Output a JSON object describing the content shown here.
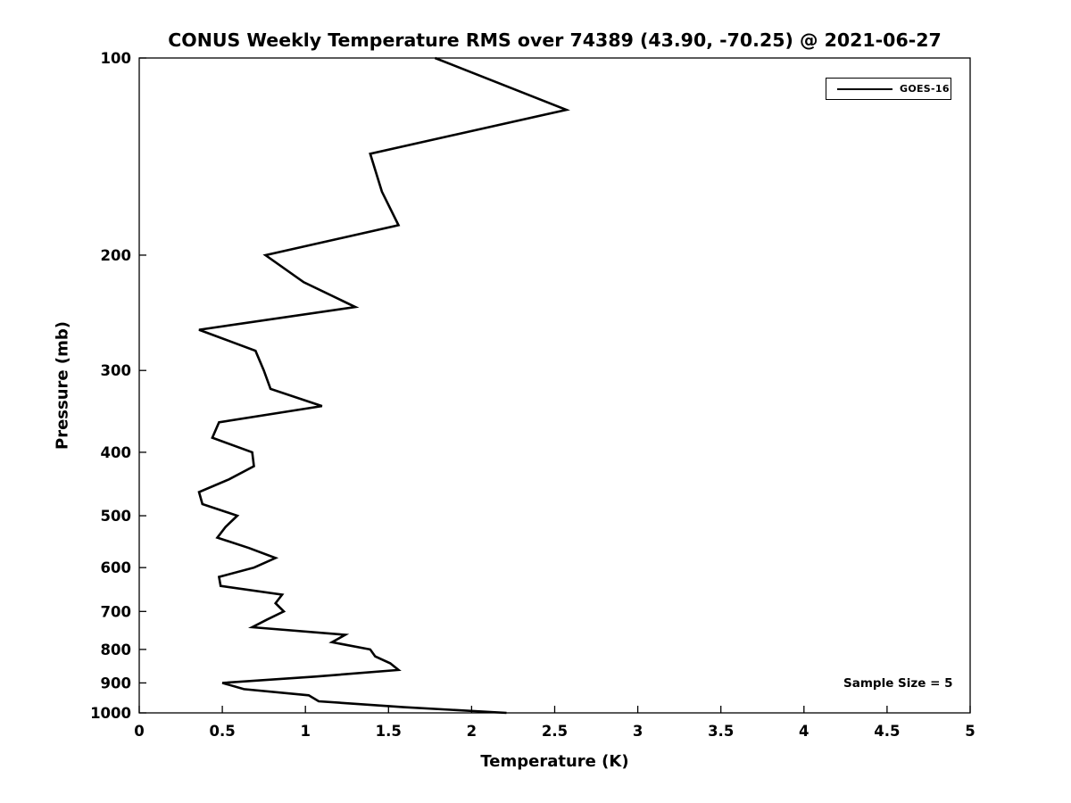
{
  "title": "CONUS Weekly Temperature RMS over 74389 (43.90, -70.25) @ 2021-06-27",
  "legend": {
    "label": "GOES-16",
    "line_color": "#000000"
  },
  "annotation": {
    "sample_size_text": "Sample Size = 5"
  },
  "chart_data": {
    "type": "line",
    "title": "CONUS Weekly Temperature RMS over 74389 (43.90, -70.25) @ 2021-06-27",
    "xlabel": "Temperature (K)",
    "ylabel": "Pressure (mb)",
    "xlim": [
      0,
      5
    ],
    "ylim": [
      100,
      1000
    ],
    "yscale": "log",
    "y_axis_inverted": true,
    "grid": false,
    "legend_position": "top-right",
    "xticks": [
      0,
      0.5,
      1,
      1.5,
      2,
      2.5,
      3,
      3.5,
      4,
      4.5,
      5
    ],
    "xtick_labels": [
      "0",
      "0.5",
      "1",
      "1.5",
      "2",
      "2.5",
      "3",
      "3.5",
      "4",
      "4.5",
      "5"
    ],
    "yticks": [
      100,
      200,
      300,
      400,
      500,
      600,
      700,
      800,
      900,
      1000
    ],
    "ytick_labels": [
      "100",
      "200",
      "300",
      "400",
      "500",
      "600",
      "700",
      "800",
      "900",
      "1000"
    ],
    "series": [
      {
        "name": "GOES-16",
        "color": "#000000",
        "line_width": 2.6,
        "pressure_mb": [
          100,
          120,
          140,
          160,
          180,
          200,
          220,
          240,
          260,
          280,
          300,
          320,
          340,
          360,
          380,
          400,
          420,
          440,
          460,
          480,
          500,
          520,
          540,
          560,
          580,
          600,
          620,
          640,
          660,
          680,
          700,
          720,
          740,
          760,
          780,
          800,
          820,
          840,
          860,
          880,
          900,
          920,
          940,
          960,
          980,
          1000
        ],
        "rms_k": [
          1.78,
          2.57,
          1.39,
          1.46,
          1.56,
          0.76,
          0.99,
          1.3,
          0.36,
          0.7,
          0.75,
          0.79,
          1.1,
          0.48,
          0.44,
          0.68,
          0.69,
          0.54,
          0.36,
          0.38,
          0.59,
          0.52,
          0.47,
          0.66,
          0.82,
          0.69,
          0.48,
          0.49,
          0.86,
          0.82,
          0.87,
          0.77,
          0.68,
          1.24,
          1.16,
          1.39,
          1.42,
          1.51,
          1.56,
          1.06,
          0.5,
          0.63,
          1.02,
          1.08,
          1.59,
          2.21
        ]
      }
    ],
    "annotations": [
      "Sample Size = 5"
    ]
  }
}
